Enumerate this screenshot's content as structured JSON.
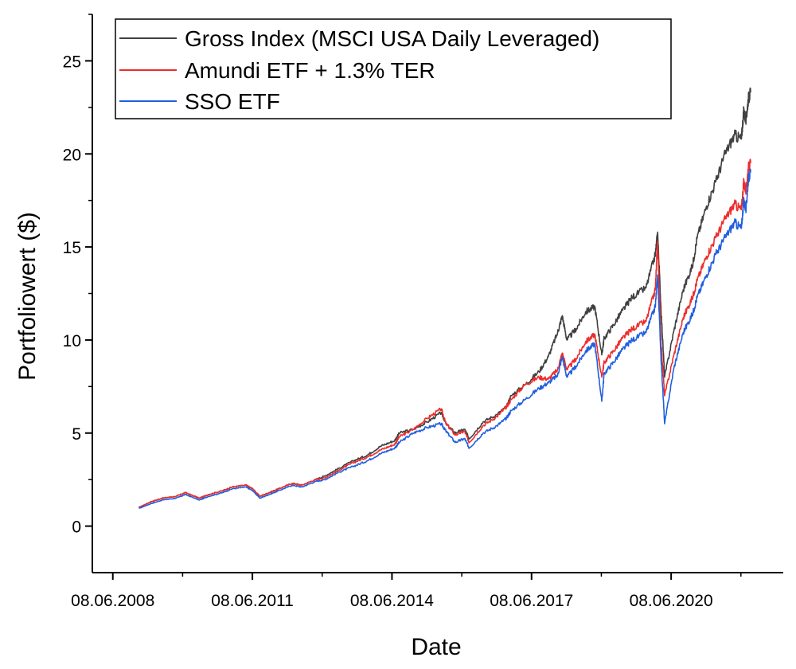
{
  "chart_data": {
    "type": "line",
    "title": "",
    "xlabel": "Date",
    "ylabel": "Portfoliowert ($)",
    "xlim": [
      2008.0,
      2022.85
    ],
    "ylim": [
      -2.5,
      27.5
    ],
    "x_ticks": [
      {
        "label": "08.06.2008",
        "value": 2008.44
      },
      {
        "label": "08.06.2011",
        "value": 2011.44
      },
      {
        "label": "08.06.2014",
        "value": 2014.44
      },
      {
        "label": "08.06.2017",
        "value": 2017.44
      },
      {
        "label": "08.06.2020",
        "value": 2020.44
      }
    ],
    "y_ticks": [
      {
        "label": "0",
        "value": 0
      },
      {
        "label": "5",
        "value": 5
      },
      {
        "label": "10",
        "value": 10
      },
      {
        "label": "15",
        "value": 15
      },
      {
        "label": "20",
        "value": 20
      },
      {
        "label": "25",
        "value": 25
      }
    ],
    "legend_position": "top-left",
    "grid": false,
    "series": [
      {
        "name": "Gross Index (MSCI USA Daily Leveraged)",
        "color": "#404040",
        "x": [
          2009.0,
          2009.25,
          2009.5,
          2009.8,
          2010.0,
          2010.3,
          2010.5,
          2010.8,
          2011.0,
          2011.3,
          2011.45,
          2011.6,
          2011.8,
          2012.0,
          2012.3,
          2012.5,
          2012.8,
          2013.0,
          2013.3,
          2013.6,
          2013.9,
          2014.2,
          2014.5,
          2014.6,
          2014.9,
          2015.2,
          2015.5,
          2015.6,
          2015.8,
          2016.0,
          2016.1,
          2016.4,
          2016.7,
          2016.9,
          2017.0,
          2017.3,
          2017.6,
          2017.8,
          2018.0,
          2018.1,
          2018.2,
          2018.4,
          2018.6,
          2018.8,
          2018.95,
          2019.0,
          2019.2,
          2019.4,
          2019.6,
          2019.9,
          2020.1,
          2020.15,
          2020.22,
          2020.3,
          2020.5,
          2020.7,
          2020.9,
          2021.0,
          2021.2,
          2021.4,
          2021.6,
          2021.8,
          2021.95,
          2022.0,
          2022.05,
          2022.1,
          2022.15
        ],
        "values": [
          1.0,
          1.3,
          1.5,
          1.6,
          1.8,
          1.5,
          1.7,
          1.9,
          2.1,
          2.2,
          2.0,
          1.6,
          1.8,
          2.0,
          2.3,
          2.2,
          2.5,
          2.7,
          3.1,
          3.5,
          3.8,
          4.3,
          4.6,
          5.0,
          5.2,
          5.6,
          6.1,
          5.5,
          5.0,
          5.2,
          4.7,
          5.6,
          6.0,
          6.4,
          7.0,
          7.6,
          8.3,
          9.1,
          10.4,
          11.3,
          10.0,
          10.6,
          11.5,
          11.8,
          9.2,
          10.1,
          10.8,
          11.6,
          12.3,
          12.8,
          14.6,
          15.8,
          11.8,
          8.0,
          10.5,
          12.7,
          14.0,
          15.5,
          17.2,
          18.5,
          20.0,
          21.0,
          20.8,
          22.3,
          21.8,
          23.0,
          23.3
        ]
      },
      {
        "name": "Amundi ETF + 1.3% TER",
        "color": "#ee2c2c",
        "x": [
          2009.0,
          2009.25,
          2009.5,
          2009.8,
          2010.0,
          2010.3,
          2010.5,
          2010.8,
          2011.0,
          2011.3,
          2011.45,
          2011.6,
          2011.8,
          2012.0,
          2012.3,
          2012.5,
          2012.8,
          2013.0,
          2013.3,
          2013.6,
          2013.9,
          2014.2,
          2014.5,
          2014.6,
          2014.9,
          2015.2,
          2015.5,
          2015.6,
          2015.8,
          2016.0,
          2016.1,
          2016.4,
          2016.7,
          2016.9,
          2017.0,
          2017.3,
          2017.6,
          2017.8,
          2018.0,
          2018.1,
          2018.2,
          2018.4,
          2018.6,
          2018.8,
          2018.95,
          2019.0,
          2019.2,
          2019.4,
          2019.6,
          2019.9,
          2020.1,
          2020.15,
          2020.22,
          2020.3,
          2020.5,
          2020.7,
          2020.9,
          2021.0,
          2021.2,
          2021.4,
          2021.6,
          2021.8,
          2021.95,
          2022.0,
          2022.05,
          2022.1,
          2022.15
        ],
        "values": [
          1.0,
          1.3,
          1.5,
          1.6,
          1.8,
          1.5,
          1.7,
          1.9,
          2.1,
          2.2,
          2.0,
          1.6,
          1.8,
          2.0,
          2.3,
          2.2,
          2.5,
          2.6,
          3.0,
          3.4,
          3.7,
          4.1,
          4.4,
          4.8,
          5.2,
          5.8,
          6.3,
          5.5,
          4.9,
          5.1,
          4.5,
          5.4,
          5.9,
          6.4,
          6.8,
          7.6,
          8.0,
          7.9,
          8.4,
          9.3,
          8.4,
          9.0,
          9.9,
          10.3,
          8.0,
          8.8,
          9.4,
          10.1,
          10.6,
          11.0,
          12.7,
          15.3,
          10.0,
          7.0,
          9.2,
          11.2,
          12.3,
          13.2,
          14.5,
          15.5,
          16.5,
          17.3,
          17.0,
          18.5,
          18.0,
          19.3,
          19.5
        ]
      },
      {
        "name": "SSO ETF",
        "color": "#1f5fe0",
        "x": [
          2009.0,
          2009.25,
          2009.5,
          2009.8,
          2010.0,
          2010.3,
          2010.5,
          2010.8,
          2011.0,
          2011.3,
          2011.45,
          2011.6,
          2011.8,
          2012.0,
          2012.3,
          2012.5,
          2012.8,
          2013.0,
          2013.3,
          2013.6,
          2013.9,
          2014.2,
          2014.5,
          2014.6,
          2014.9,
          2015.2,
          2015.5,
          2015.6,
          2015.8,
          2016.0,
          2016.1,
          2016.4,
          2016.7,
          2016.9,
          2017.0,
          2017.3,
          2017.6,
          2017.8,
          2018.0,
          2018.1,
          2018.2,
          2018.4,
          2018.6,
          2018.8,
          2018.95,
          2019.0,
          2019.2,
          2019.4,
          2019.6,
          2019.9,
          2020.1,
          2020.15,
          2020.22,
          2020.3,
          2020.5,
          2020.7,
          2020.9,
          2021.0,
          2021.2,
          2021.4,
          2021.6,
          2021.8,
          2021.95,
          2022.0,
          2022.05,
          2022.1,
          2022.15
        ],
        "values": [
          0.95,
          1.2,
          1.4,
          1.5,
          1.7,
          1.4,
          1.6,
          1.8,
          2.0,
          2.1,
          1.9,
          1.5,
          1.7,
          1.9,
          2.2,
          2.1,
          2.4,
          2.5,
          2.9,
          3.2,
          3.5,
          3.9,
          4.2,
          4.5,
          5.0,
          5.3,
          5.5,
          5.1,
          4.5,
          4.7,
          4.2,
          5.0,
          5.4,
          5.8,
          6.2,
          6.8,
          7.4,
          7.7,
          8.1,
          9.1,
          8.0,
          8.6,
          9.4,
          9.8,
          6.7,
          8.2,
          8.8,
          9.5,
          10.0,
          10.4,
          11.8,
          13.5,
          9.2,
          5.5,
          8.5,
          10.4,
          11.4,
          12.3,
          13.5,
          14.6,
          15.5,
          16.3,
          16.0,
          17.5,
          17.0,
          18.7,
          19.0
        ]
      }
    ]
  }
}
